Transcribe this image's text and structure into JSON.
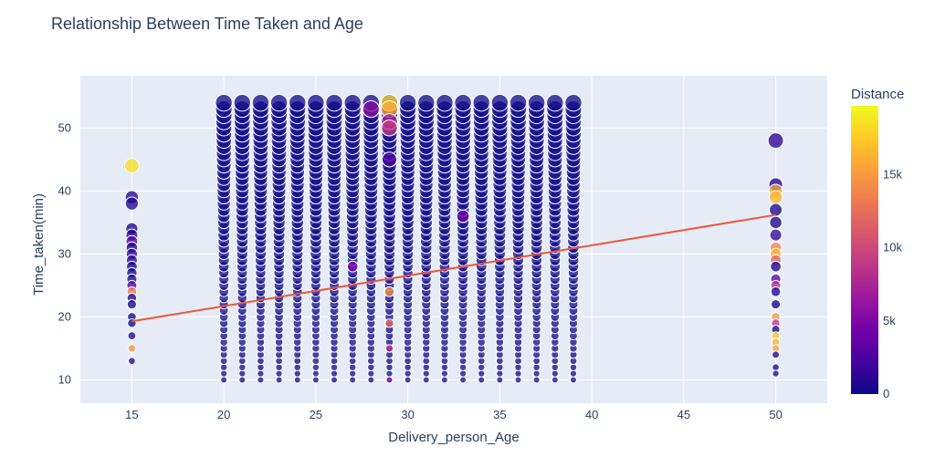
{
  "chart_data": {
    "type": "scatter",
    "title": "Relationship Between Time Taken and Age",
    "xlabel": "Delivery_person_Age",
    "ylabel": "Time_taken(min)",
    "xlim": [
      12.2,
      52.8
    ],
    "ylim": [
      6.3,
      58.3
    ],
    "x_ticks": [
      15,
      20,
      25,
      30,
      35,
      40,
      45,
      50
    ],
    "y_ticks": [
      10,
      20,
      30,
      40,
      50
    ],
    "x_tick_labels": [
      "15",
      "20",
      "25",
      "30",
      "35",
      "40",
      "45",
      "50"
    ],
    "y_tick_labels": [
      "10",
      "20",
      "30",
      "40",
      "50"
    ],
    "grid": true,
    "colorbar": {
      "title": "Distance",
      "range": [
        0,
        19700
      ],
      "ticks": [
        0,
        5000,
        10000,
        15000
      ],
      "tick_labels": [
        "0",
        "5k",
        "10k",
        "15k"
      ],
      "colorscale": [
        "#0d0887",
        "#46039f",
        "#7201a8",
        "#9c179e",
        "#bd3786",
        "#d8576b",
        "#ed7953",
        "#fb9f3a",
        "#fdca26",
        "#f0f921"
      ]
    },
    "trendline": {
      "x": [
        15,
        50
      ],
      "y": [
        19.3,
        36.2
      ],
      "color": "#ef553b"
    },
    "dense_ages": [
      20,
      21,
      22,
      23,
      24,
      25,
      26,
      27,
      28,
      29,
      30,
      31,
      32,
      33,
      34,
      35,
      36,
      37,
      38,
      39
    ],
    "dense_time_range": [
      10,
      54
    ],
    "points": [
      {
        "x": 15,
        "y": 44,
        "d": 18500
      },
      {
        "x": 15,
        "y": 39,
        "d": 900
      },
      {
        "x": 15,
        "y": 38,
        "d": 600
      },
      {
        "x": 15,
        "y": 34,
        "d": 400
      },
      {
        "x": 15,
        "y": 33,
        "d": 800
      },
      {
        "x": 15,
        "y": 32,
        "d": 3000
      },
      {
        "x": 15,
        "y": 31,
        "d": 500
      },
      {
        "x": 15,
        "y": 30,
        "d": 1500
      },
      {
        "x": 15,
        "y": 29,
        "d": 700
      },
      {
        "x": 15,
        "y": 28,
        "d": 400
      },
      {
        "x": 15,
        "y": 27,
        "d": 300
      },
      {
        "x": 15,
        "y": 26,
        "d": 600
      },
      {
        "x": 15,
        "y": 25,
        "d": 2500
      },
      {
        "x": 15,
        "y": 24,
        "d": 13000
      },
      {
        "x": 15,
        "y": 23,
        "d": 500
      },
      {
        "x": 15,
        "y": 22,
        "d": 300
      },
      {
        "x": 15,
        "y": 20,
        "d": 400
      },
      {
        "x": 15,
        "y": 19,
        "d": 200
      },
      {
        "x": 15,
        "y": 17,
        "d": 600
      },
      {
        "x": 15,
        "y": 15,
        "d": 14500
      },
      {
        "x": 15,
        "y": 13,
        "d": 800
      },
      {
        "x": 50,
        "y": 48,
        "d": 1200
      },
      {
        "x": 50,
        "y": 41,
        "d": 900
      },
      {
        "x": 50,
        "y": 40,
        "d": 15500
      },
      {
        "x": 50,
        "y": 39,
        "d": 16500
      },
      {
        "x": 50,
        "y": 37,
        "d": 700
      },
      {
        "x": 50,
        "y": 35,
        "d": 500
      },
      {
        "x": 50,
        "y": 33,
        "d": 1500
      },
      {
        "x": 50,
        "y": 31,
        "d": 14000
      },
      {
        "x": 50,
        "y": 30,
        "d": 16000
      },
      {
        "x": 50,
        "y": 29,
        "d": 12000
      },
      {
        "x": 50,
        "y": 28,
        "d": 400
      },
      {
        "x": 50,
        "y": 26,
        "d": 3500
      },
      {
        "x": 50,
        "y": 25,
        "d": 8000
      },
      {
        "x": 50,
        "y": 24,
        "d": 600
      },
      {
        "x": 50,
        "y": 22,
        "d": 300
      },
      {
        "x": 50,
        "y": 20,
        "d": 15000
      },
      {
        "x": 50,
        "y": 19,
        "d": 9000
      },
      {
        "x": 50,
        "y": 18,
        "d": 500
      },
      {
        "x": 50,
        "y": 17,
        "d": 17000
      },
      {
        "x": 50,
        "y": 16,
        "d": 16500
      },
      {
        "x": 50,
        "y": 15,
        "d": 15500
      },
      {
        "x": 50,
        "y": 14,
        "d": 700
      },
      {
        "x": 50,
        "y": 12,
        "d": 400
      },
      {
        "x": 50,
        "y": 11,
        "d": 600
      },
      {
        "x": 29,
        "y": 54,
        "d": 18000
      },
      {
        "x": 29,
        "y": 53,
        "d": 16000
      },
      {
        "x": 29,
        "y": 51,
        "d": 7500
      },
      {
        "x": 29,
        "y": 50,
        "d": 9000
      },
      {
        "x": 29,
        "y": 45,
        "d": 2500
      },
      {
        "x": 29,
        "y": 24,
        "d": 14500
      },
      {
        "x": 29,
        "y": 19,
        "d": 12000
      },
      {
        "x": 29,
        "y": 15,
        "d": 8500
      },
      {
        "x": 29,
        "y": 10,
        "d": 7000
      },
      {
        "x": 28,
        "y": 53,
        "d": 6000
      },
      {
        "x": 33,
        "y": 36,
        "d": 4000
      },
      {
        "x": 27,
        "y": 28,
        "d": 5200
      }
    ]
  }
}
